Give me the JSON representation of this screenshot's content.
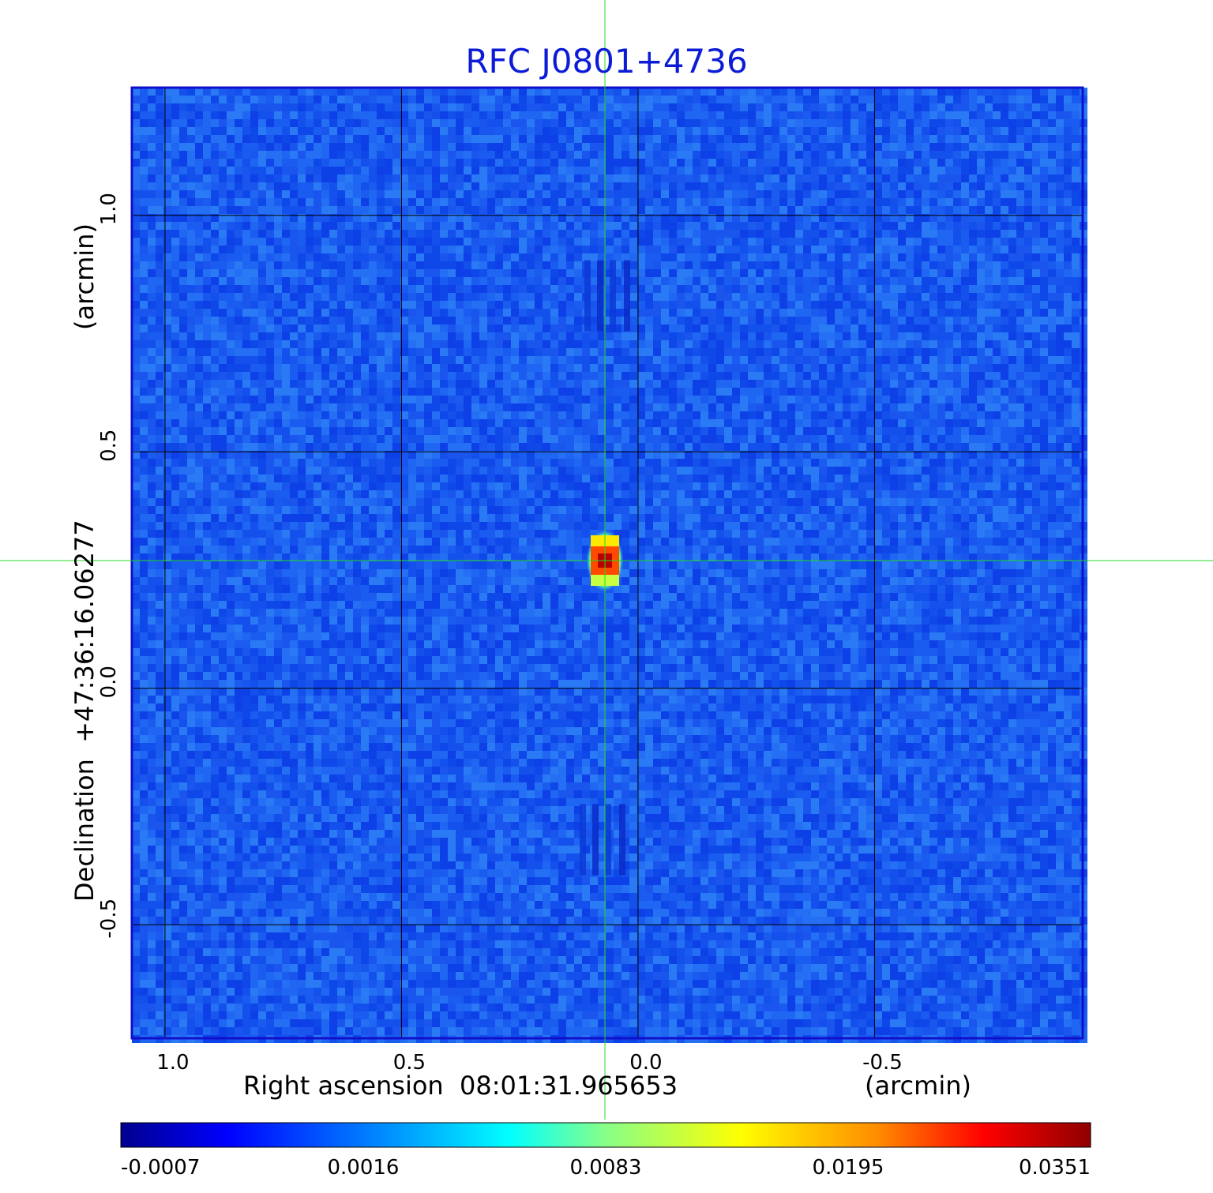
{
  "chart_data": {
    "type": "heatmap",
    "title": "RFC J0801+4736",
    "xlabel": "Right ascension  08:01:31.965653",
    "xunit": "(arcmin)",
    "ylabel": "Declination  +47:36:16.06277",
    "yunit": "(arcmin)",
    "xlim": [
      1.07,
      -0.94
    ],
    "ylim": [
      -0.74,
      1.27
    ],
    "x_ticks": [
      {
        "value": 1.0,
        "label": "1.0"
      },
      {
        "value": 0.5,
        "label": "0.5"
      },
      {
        "value": 0.0,
        "label": "0.0"
      },
      {
        "value": -0.5,
        "label": "-0.5"
      }
    ],
    "y_ticks": [
      {
        "value": 1.0,
        "label": "1.0"
      },
      {
        "value": 0.5,
        "label": "0.5"
      },
      {
        "value": 0.0,
        "label": "0.0"
      },
      {
        "value": -0.5,
        "label": "-0.5"
      }
    ],
    "grid": true,
    "crosshair": {
      "x": 0.07,
      "y": 0.27,
      "color": "#22dd22"
    },
    "source": {
      "x": 0.07,
      "y": 0.27,
      "peak": 0.0351
    },
    "sidelobes": [
      {
        "x": 0.06,
        "y": 0.83
      },
      {
        "x": 0.07,
        "y": -0.32
      }
    ],
    "colorbar": {
      "colormap": "jet",
      "ticks": [
        "-0.0007",
        "0.0016",
        "0.0083",
        "0.0195",
        "0.0351"
      ]
    },
    "colors": {
      "title": "#0b1bd6",
      "frame": "#1010cc",
      "grid": "#000000"
    }
  }
}
